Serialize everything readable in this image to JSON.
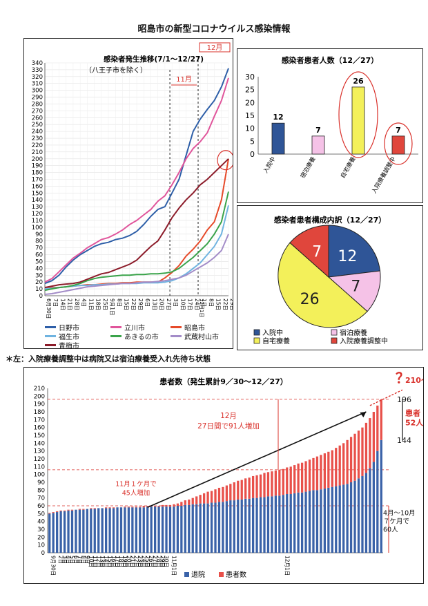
{
  "page_title": "昭島市の新型コロナウイルス感染情報",
  "note": "＊左：入院療養調整中は病院又は宿泊療養受入れ先待ち状態",
  "chart_data": [
    {
      "type": "line",
      "title": "感染者発生推移(7/1～12/27)",
      "subtitle": "（八王子市を除く）",
      "ylim": [
        0,
        340
      ],
      "yticks": [
        0,
        10,
        20,
        30,
        40,
        50,
        60,
        70,
        80,
        90,
        100,
        110,
        120,
        130,
        140,
        150,
        160,
        170,
        180,
        190,
        200,
        210,
        220,
        230,
        240,
        250,
        260,
        270,
        280,
        290,
        300,
        310,
        320,
        330,
        340
      ],
      "xticks": [
        "6月30日",
        "7日",
        "14日",
        "21日",
        "28日",
        "4日",
        "11日",
        "18日",
        "25日",
        "9月1日",
        "8日",
        "15日",
        "22日",
        "29日",
        "6日",
        "13日",
        "20日",
        "27日",
        "3日",
        "10日",
        "17日",
        "24日",
        "1日",
        "8日",
        "15日",
        "22日",
        "29日"
      ],
      "x": [
        0,
        1,
        2,
        3,
        4,
        5,
        6,
        7,
        8,
        9,
        10,
        11,
        12,
        13,
        14,
        15,
        16,
        17,
        18,
        19,
        20,
        21,
        22,
        23,
        24,
        25,
        26
      ],
      "annotations": {
        "nov": "11月",
        "dec": "12月",
        "dec1": "12月1日",
        "akishima": "昭島市"
      },
      "series": [
        {
          "name": "日野市",
          "color": "#2e5fa8",
          "values": [
            18,
            22,
            30,
            42,
            52,
            60,
            66,
            72,
            76,
            78,
            82,
            84,
            88,
            94,
            104,
            116,
            126,
            130,
            150,
            170,
            205,
            240,
            258,
            272,
            285,
            305,
            332
          ]
        },
        {
          "name": "立川市",
          "color": "#e0559b",
          "values": [
            20,
            25,
            35,
            45,
            55,
            62,
            70,
            76,
            82,
            85,
            90,
            96,
            104,
            110,
            118,
            126,
            138,
            146,
            162,
            180,
            200,
            215,
            225,
            238,
            262,
            285,
            318
          ]
        },
        {
          "name": "昭島市",
          "color": "#e64a2a",
          "values": [
            10,
            12,
            12,
            13,
            14,
            15,
            16,
            16,
            17,
            18,
            18,
            19,
            19,
            20,
            20,
            20,
            20,
            26,
            34,
            44,
            58,
            68,
            80,
            96,
            108,
            140,
            200
          ]
        },
        {
          "name": "福生市",
          "color": "#6fb3e0",
          "values": [
            10,
            11,
            12,
            13,
            14,
            15,
            15,
            16,
            16,
            17,
            17,
            18,
            18,
            18,
            19,
            19,
            19,
            20,
            22,
            26,
            32,
            40,
            48,
            60,
            72,
            90,
            132
          ]
        },
        {
          "name": "あきるの市",
          "color": "#3aa34a",
          "values": [
            8,
            10,
            12,
            13,
            15,
            18,
            22,
            25,
            27,
            28,
            29,
            30,
            30,
            31,
            31,
            32,
            32,
            33,
            35,
            40,
            48,
            56,
            66,
            76,
            90,
            108,
            152
          ]
        },
        {
          "name": "武蔵村山市",
          "color": "#a38cc8",
          "values": [
            2,
            3,
            5,
            7,
            9,
            11,
            13,
            14,
            15,
            16,
            17,
            18,
            18,
            19,
            20,
            20,
            21,
            22,
            24,
            26,
            30,
            36,
            42,
            48,
            56,
            66,
            90
          ]
        },
        {
          "name": "青梅市",
          "color": "#8c1c2a",
          "values": [
            12,
            14,
            16,
            17,
            18,
            20,
            24,
            28,
            32,
            34,
            38,
            42,
            46,
            52,
            62,
            72,
            80,
            96,
            114,
            128,
            140,
            150,
            162,
            170,
            180,
            190,
            200
          ]
        }
      ]
    },
    {
      "type": "bar",
      "title": "感染者患者人数（12／27）",
      "ylim": [
        0,
        30
      ],
      "yticks": [
        0,
        5,
        10,
        15,
        20,
        25,
        30
      ],
      "categories": [
        "入院中",
        "宿泊療養",
        "自宅療養",
        "入院療養調整中"
      ],
      "values": [
        12,
        7,
        26,
        7
      ],
      "colors": [
        "#2f5597",
        "#f5c2e7",
        "#f3f05a",
        "#e0463c"
      ]
    },
    {
      "type": "pie",
      "title": "感染者患者構成内訳（12／27）",
      "categories": [
        "入院中",
        "宿泊療養",
        "自宅療養",
        "入院療養調整中"
      ],
      "values": [
        12,
        7,
        26,
        7
      ],
      "colors": [
        "#2f5597",
        "#f5c2e7",
        "#f3f05a",
        "#e0463c"
      ]
    },
    {
      "type": "bar",
      "stacked": true,
      "title": "患者数（発生累計9／30～12／27）",
      "ylim": [
        0,
        210
      ],
      "yticks": [
        0,
        10,
        20,
        30,
        40,
        50,
        60,
        70,
        80,
        90,
        100,
        110,
        120,
        130,
        140,
        150,
        160,
        170,
        180,
        190,
        200,
        210
      ],
      "series_names": [
        "退院",
        "患者数"
      ],
      "series_colors": [
        "#3a62a8",
        "#e8504a"
      ],
      "x": [
        "9月30日",
        "1日",
        "2日",
        "3日",
        "4日",
        "5日",
        "6日",
        "7日",
        "8日",
        "9日",
        "10日",
        "11日",
        "12日",
        "13日",
        "14日",
        "15日",
        "16日",
        "17日",
        "18日",
        "19日",
        "20日",
        "21日",
        "22日",
        "23日",
        "24日",
        "25日",
        "26日",
        "27日",
        "28日",
        "29日",
        "30日",
        "31日",
        "11月1日",
        "2日",
        "3日",
        "4日",
        "5日",
        "6日",
        "7日",
        "8日",
        "9日",
        "10日",
        "11日",
        "12日",
        "13日",
        "14日",
        "15日",
        "16日",
        "17日",
        "18日",
        "19日",
        "20日",
        "21日",
        "22日",
        "23日",
        "24日",
        "25日",
        "26日",
        "27日",
        "28日",
        "29日",
        "30日",
        "12月1日",
        "2日",
        "3日",
        "4日",
        "5日",
        "6日",
        "7日",
        "8日",
        "9日",
        "10日",
        "11日",
        "12日",
        "13日",
        "14日",
        "15日",
        "16日",
        "17日",
        "18日",
        "19日",
        "20日",
        "21日",
        "22日",
        "23日",
        "24日",
        "25日",
        "26日",
        "27日"
      ],
      "xticks": [
        "9月30日",
        "2日",
        "4日",
        "6日",
        "8日",
        "10日",
        "12日",
        "14日",
        "16日",
        "18日",
        "20日",
        "22日",
        "24日",
        "26日",
        "28日",
        "30日",
        "11月1日",
        "3日",
        "5日",
        "7日",
        "9日",
        "11日",
        "13日",
        "15日",
        "17日",
        "19日",
        "21日",
        "23日",
        "25日",
        "27日",
        "29日",
        "12月1日",
        "3日",
        "5日",
        "7日",
        "9日",
        "11日",
        "13日",
        "15日",
        "17日",
        "19日",
        "21日",
        "23日",
        "25日",
        "27日",
        "29日"
      ],
      "discharged": [
        50,
        51,
        52,
        53,
        53,
        54,
        54,
        55,
        55,
        55,
        56,
        56,
        56,
        57,
        57,
        57,
        57,
        57,
        58,
        58,
        58,
        58,
        58,
        58,
        58,
        58,
        59,
        59,
        59,
        59,
        59,
        59,
        59,
        59,
        60,
        60,
        61,
        61,
        62,
        62,
        63,
        63,
        63,
        64,
        64,
        65,
        65,
        66,
        67,
        67,
        68,
        68,
        69,
        69,
        70,
        70,
        71,
        71,
        72,
        72,
        73,
        73,
        74,
        75,
        75,
        76,
        77,
        77,
        78,
        79,
        80,
        80,
        81,
        82,
        83,
        84,
        85,
        86,
        87,
        88,
        90,
        92,
        95,
        98,
        102,
        108,
        116,
        130,
        144
      ],
      "total": [
        51,
        52,
        53,
        54,
        54,
        55,
        55,
        55,
        56,
        56,
        56,
        57,
        57,
        57,
        57,
        58,
        58,
        58,
        58,
        58,
        59,
        59,
        59,
        59,
        59,
        60,
        60,
        60,
        60,
        60,
        61,
        61,
        61,
        62,
        63,
        65,
        67,
        68,
        70,
        72,
        74,
        76,
        78,
        79,
        81,
        83,
        84,
        86,
        88,
        90,
        92,
        93,
        95,
        96,
        98,
        99,
        100,
        102,
        103,
        104,
        105,
        106,
        107,
        109,
        110,
        112,
        114,
        115,
        117,
        119,
        121,
        123,
        125,
        127,
        129,
        131,
        134,
        137,
        140,
        144,
        148,
        152,
        156,
        160,
        166,
        172,
        180,
        188,
        196
      ],
      "labels": {
        "final_total": "196",
        "final_discharged": "144",
        "projection": "210～",
        "question": "？",
        "patients": "患者\n52人"
      },
      "annotations": {
        "nov_text": "11月１ケ月で\n45人増加",
        "dec_text": "12月\n27日間で91人増加",
        "early_text": "4月～10月\n７ケ月で\n60人"
      }
    }
  ]
}
